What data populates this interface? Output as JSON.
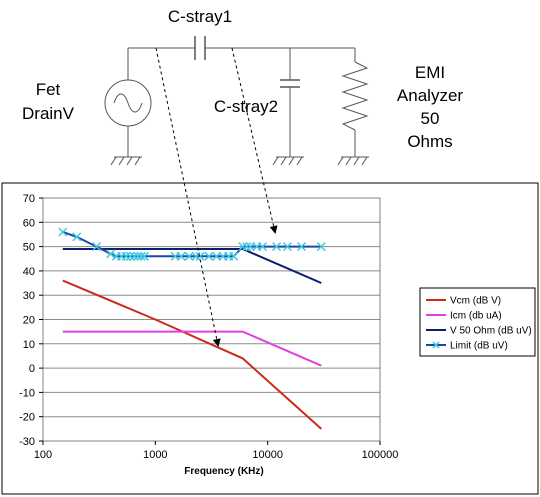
{
  "schematic": {
    "source_label": [
      "Fet",
      "DrainV"
    ],
    "cap1_label": "C-stray1",
    "cap2_label": "C-stray2",
    "load_label": [
      "EMI",
      "Analyzer",
      "50",
      "Ohms"
    ]
  },
  "chart_data": {
    "type": "line",
    "xlabel": "Frequency (KHz)",
    "ylabel": "",
    "title": "",
    "xscale": "log",
    "xlim": [
      100,
      100000
    ],
    "ylim": [
      -30,
      70
    ],
    "x_ticks": [
      "100",
      "1000",
      "10000",
      "100000"
    ],
    "y_ticks": [
      "-30",
      "-20",
      "-10",
      "0",
      "10",
      "20",
      "30",
      "40",
      "50",
      "60",
      "70"
    ],
    "grid": "horizontal",
    "legend_position": "right",
    "series": [
      {
        "name": "Vcm (dB V)",
        "color": "#cc2a1c",
        "x": [
          150,
          1000,
          6000,
          30000
        ],
        "y": [
          36,
          20,
          4,
          -25
        ]
      },
      {
        "name": "Icm (db uA)",
        "color": "#e040e0",
        "x": [
          150,
          6000,
          30000
        ],
        "y": [
          15,
          15,
          1
        ]
      },
      {
        "name": "V 50 Ohm (dB uV)",
        "color": "#0a1e6e",
        "x": [
          150,
          6000,
          30000
        ],
        "y": [
          49,
          49,
          35
        ]
      },
      {
        "name": "Limit (dB uV)",
        "color": "#1a4aa8",
        "marker": "x",
        "marker_color": "#40c8e0",
        "x": [
          150,
          200,
          300,
          400,
          450,
          500,
          550,
          600,
          650,
          700,
          750,
          800,
          1500,
          1700,
          2000,
          2300,
          2500,
          3000,
          3500,
          4000,
          4500,
          5000,
          6000,
          6500,
          7000,
          8000,
          9000,
          12000,
          15000,
          20000,
          30000
        ],
        "y": [
          56,
          54,
          50,
          47,
          46,
          46,
          46,
          46,
          46,
          46,
          46,
          46,
          46,
          46,
          46,
          46,
          46,
          46,
          46,
          46,
          46,
          46,
          50,
          50,
          50,
          50,
          50,
          50,
          50,
          50,
          50
        ]
      }
    ]
  }
}
